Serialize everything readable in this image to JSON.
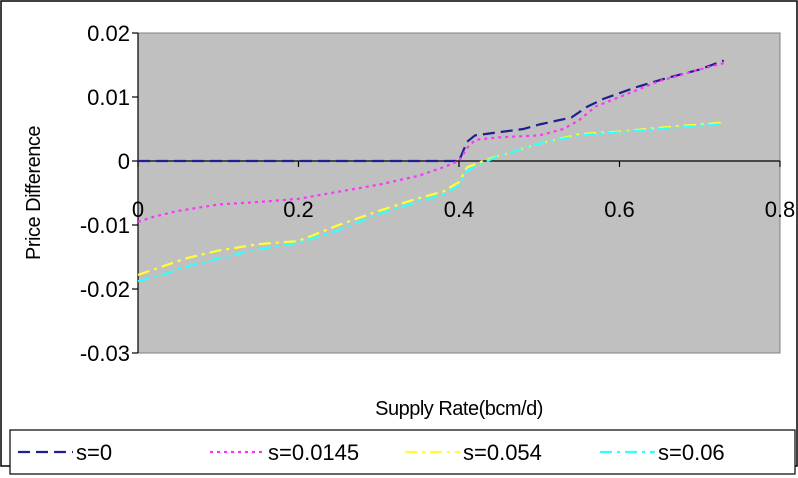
{
  "chart_data": {
    "type": "line",
    "title": "",
    "xlabel": "Supply Rate(bcm/d)",
    "ylabel": "Price Difference",
    "xlim": [
      0,
      0.8
    ],
    "ylim": [
      -0.03,
      0.02
    ],
    "x_ticks": [
      0,
      0.2,
      0.4,
      0.6,
      0.8
    ],
    "x_tick_labels": [
      "0",
      "0.2",
      "0.4",
      "0.6",
      "0.8"
    ],
    "y_ticks": [
      0.02,
      0.01,
      0,
      -0.01,
      -0.02,
      -0.03
    ],
    "y_tick_labels": [
      "0.02",
      "0.01",
      "0",
      "-0.01",
      "-0.02",
      "-0.03"
    ],
    "plot_background": "#c0c0c0",
    "grid": false,
    "legend_position": "bottom",
    "series": [
      {
        "name": "s=0",
        "color": "#1f1f8f",
        "dash": "dashed",
        "x": [
          0,
          0.1,
          0.2,
          0.3,
          0.39,
          0.4,
          0.41,
          0.42,
          0.45,
          0.48,
          0.5,
          0.54,
          0.56,
          0.58,
          0.62,
          0.66,
          0.7,
          0.73
        ],
        "y": [
          0,
          0,
          0,
          0,
          0,
          0,
          0.003,
          0.004,
          0.0045,
          0.005,
          0.0057,
          0.0068,
          0.0085,
          0.0097,
          0.0115,
          0.013,
          0.0143,
          0.0157
        ]
      },
      {
        "name": "s=0.0145",
        "color": "#ff33ff",
        "dash": "dotted",
        "x": [
          0,
          0.02,
          0.05,
          0.1,
          0.15,
          0.2,
          0.25,
          0.3,
          0.35,
          0.38,
          0.4,
          0.41,
          0.42,
          0.45,
          0.5,
          0.53,
          0.55,
          0.57,
          0.6,
          0.65,
          0.7,
          0.73
        ],
        "y": [
          -0.0095,
          -0.0087,
          -0.0078,
          -0.0068,
          -0.0064,
          -0.0059,
          -0.0048,
          -0.0037,
          -0.0023,
          -0.001,
          0,
          0.002,
          0.0033,
          0.0037,
          0.004,
          0.005,
          0.0064,
          0.0085,
          0.01,
          0.0125,
          0.0143,
          0.0153
        ]
      },
      {
        "name": "s=0.054",
        "color": "#ffff33",
        "dash": "dashdot",
        "x": [
          0,
          0.03,
          0.06,
          0.1,
          0.15,
          0.2,
          0.25,
          0.3,
          0.35,
          0.38,
          0.4,
          0.41,
          0.43,
          0.45,
          0.5,
          0.55,
          0.6,
          0.65,
          0.7,
          0.73
        ],
        "y": [
          -0.0178,
          -0.0165,
          -0.0152,
          -0.014,
          -0.013,
          -0.0125,
          -0.01,
          -0.0078,
          -0.0058,
          -0.0048,
          -0.0033,
          -0.001,
          0,
          0.0008,
          0.0027,
          0.0042,
          0.0046,
          0.0052,
          0.0057,
          0.006
        ]
      },
      {
        "name": "s=0.06",
        "color": "#33ffff",
        "dash": "dashdot",
        "x": [
          0,
          0.03,
          0.06,
          0.1,
          0.15,
          0.2,
          0.25,
          0.3,
          0.35,
          0.38,
          0.4,
          0.41,
          0.43,
          0.45,
          0.5,
          0.55,
          0.6,
          0.65,
          0.7,
          0.73
        ],
        "y": [
          -0.0188,
          -0.0178,
          -0.0165,
          -0.0152,
          -0.0138,
          -0.0128,
          -0.0108,
          -0.0083,
          -0.0063,
          -0.0053,
          -0.0038,
          -0.0015,
          -0.0003,
          0.0008,
          0.0027,
          0.004,
          0.0045,
          0.005,
          0.0055,
          0.0058
        ]
      }
    ]
  }
}
